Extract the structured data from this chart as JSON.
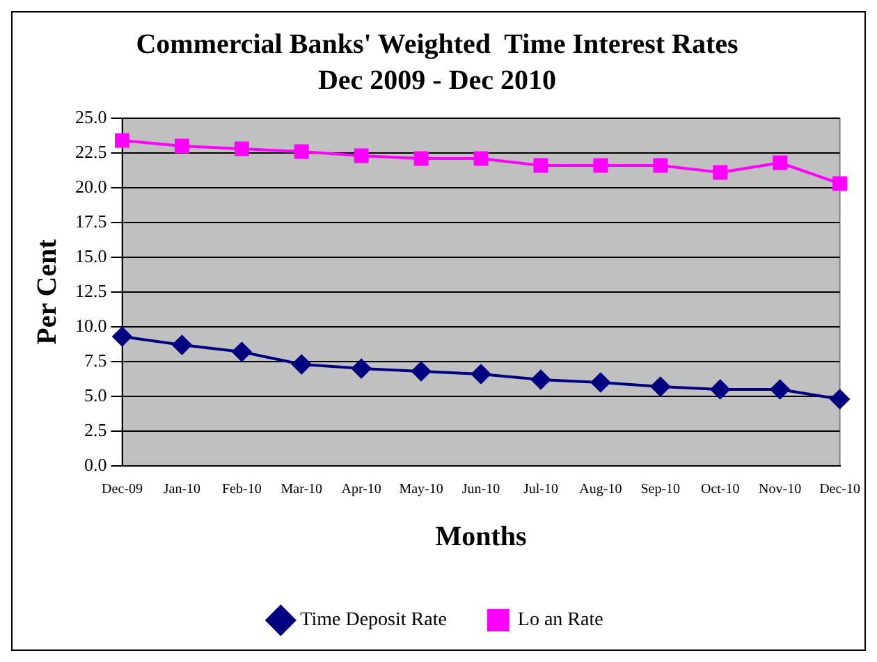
{
  "chart_data": {
    "type": "line",
    "title": "Commercial Banks' Weighted  Time Interest Rates",
    "subtitle": "Dec 2009 - Dec 2010",
    "xlabel": "Months",
    "ylabel": "Per Cent",
    "categories": [
      "Dec-09",
      "Jan-10",
      "Feb-10",
      "Mar-10",
      "Apr-10",
      "May-10",
      "Jun-10",
      "Jul-10",
      "Aug-10",
      "Sep-10",
      "Oct-10",
      "Nov-10",
      "Dec-10"
    ],
    "series": [
      {
        "name": "Time Deposit Rate",
        "color": "#000080",
        "marker": "diamond",
        "values": [
          9.3,
          8.7,
          8.2,
          7.3,
          7.0,
          6.8,
          6.6,
          6.2,
          6.0,
          5.7,
          5.5,
          5.5,
          4.8
        ]
      },
      {
        "name": "Lo an Rate",
        "color": "#ff00ff",
        "marker": "square",
        "values": [
          23.4,
          23.0,
          22.8,
          22.6,
          22.3,
          22.1,
          22.1,
          21.6,
          21.6,
          21.6,
          21.1,
          21.8,
          20.3
        ]
      }
    ],
    "ylim": [
      0,
      25
    ],
    "yticks": [
      {
        "value": 0,
        "label": "0.0"
      },
      {
        "value": 2.5,
        "label": "2.5"
      },
      {
        "value": 5,
        "label": "5.0"
      },
      {
        "value": 7.5,
        "label": "7.5"
      },
      {
        "value": 10,
        "label": "10.0"
      },
      {
        "value": 12.5,
        "label": "12.5"
      },
      {
        "value": 15,
        "label": "15.0"
      },
      {
        "value": 17.5,
        "label": "17.5"
      },
      {
        "value": 20,
        "label": "20.0"
      },
      {
        "value": 22.5,
        "label": "22.5"
      },
      {
        "value": 25,
        "label": "25.0"
      }
    ],
    "grid": "y",
    "legend": "bottom"
  }
}
